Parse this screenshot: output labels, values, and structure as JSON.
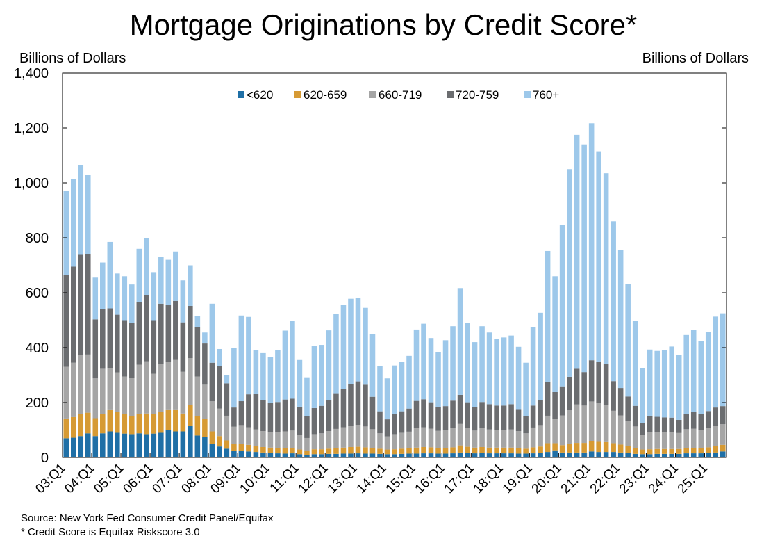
{
  "chart_data": {
    "type": "bar",
    "stacked": true,
    "title": "Mortgage Originations by Credit Score*",
    "ylabel_left": "Billions of Dollars",
    "ylabel_right": "Billions of Dollars",
    "ylim": [
      0,
      1400
    ],
    "yticks": [
      "0",
      "200",
      "400",
      "600",
      "800",
      "1,000",
      "1,200",
      "1,400"
    ],
    "ytick_values": [
      0,
      200,
      400,
      600,
      800,
      1000,
      1200,
      1400
    ],
    "grid": false,
    "legend_position": "top-center",
    "colors": {
      "<620": "#1f6fa6",
      "620-659": "#d69a34",
      "660-719": "#a5a5a5",
      "720-759": "#6b6d70",
      "760+": "#9dc8ea"
    },
    "xtick_labels": [
      "03:Q1",
      "04:Q1",
      "05:Q1",
      "06:Q1",
      "07:Q1",
      "08:Q1",
      "09:Q1",
      "10:Q1",
      "11:Q1",
      "12:Q1",
      "13:Q1",
      "14:Q1",
      "15:Q1",
      "16:Q1",
      "17:Q1",
      "18:Q1",
      "19:Q1",
      "20:Q1",
      "21:Q1",
      "22:Q1",
      "23:Q1",
      "24:Q1",
      "25:Q1"
    ],
    "categories": [
      "03:Q1",
      "03:Q2",
      "03:Q3",
      "03:Q4",
      "04:Q1",
      "04:Q2",
      "04:Q3",
      "04:Q4",
      "05:Q1",
      "05:Q2",
      "05:Q3",
      "05:Q4",
      "06:Q1",
      "06:Q2",
      "06:Q3",
      "06:Q4",
      "07:Q1",
      "07:Q2",
      "07:Q3",
      "07:Q4",
      "08:Q1",
      "08:Q2",
      "08:Q3",
      "08:Q4",
      "09:Q1",
      "09:Q2",
      "09:Q3",
      "09:Q4",
      "10:Q1",
      "10:Q2",
      "10:Q3",
      "10:Q4",
      "11:Q1",
      "11:Q2",
      "11:Q3",
      "11:Q4",
      "12:Q1",
      "12:Q2",
      "12:Q3",
      "12:Q4",
      "13:Q1",
      "13:Q2",
      "13:Q3",
      "13:Q4",
      "14:Q1",
      "14:Q2",
      "14:Q3",
      "14:Q4",
      "15:Q1",
      "15:Q2",
      "15:Q3",
      "15:Q4",
      "16:Q1",
      "16:Q2",
      "16:Q3",
      "16:Q4",
      "17:Q1",
      "17:Q2",
      "17:Q3",
      "17:Q4",
      "18:Q1",
      "18:Q2",
      "18:Q3",
      "18:Q4",
      "19:Q1",
      "19:Q2",
      "19:Q3",
      "19:Q4",
      "20:Q1",
      "20:Q2",
      "20:Q3",
      "20:Q4",
      "21:Q1",
      "21:Q2",
      "21:Q3",
      "21:Q4",
      "22:Q1",
      "22:Q2",
      "22:Q3",
      "22:Q4",
      "23:Q1",
      "23:Q2",
      "23:Q3",
      "23:Q4",
      "24:Q1",
      "24:Q2",
      "24:Q3",
      "24:Q4",
      "25:Q1",
      "25:Q2",
      "25:Q3"
    ],
    "totals": [
      970,
      1015,
      1065,
      1030,
      655,
      710,
      785,
      670,
      660,
      630,
      760,
      800,
      675,
      730,
      720,
      750,
      645,
      700,
      515,
      455,
      560,
      395,
      300,
      400,
      517,
      512,
      392,
      380,
      367,
      390,
      462,
      497,
      355,
      292,
      405,
      410,
      463,
      522,
      555,
      578,
      580,
      545,
      450,
      332,
      288,
      335,
      347,
      370,
      466,
      487,
      435,
      383,
      427,
      478,
      617,
      490,
      420,
      478,
      455,
      432,
      437,
      444,
      403,
      345,
      474,
      527,
      752,
      660,
      848,
      1050,
      1175,
      1140,
      1217,
      1115,
      1035,
      860,
      755,
      632,
      497,
      325,
      393,
      388,
      392,
      404,
      373,
      446,
      465,
      425,
      457,
      513,
      525
    ],
    "series": [
      {
        "name": "<620",
        "values": [
          70,
          72,
          78,
          88,
          78,
          88,
          95,
          90,
          87,
          85,
          88,
          85,
          87,
          90,
          100,
          95,
          95,
          115,
          80,
          75,
          50,
          40,
          32,
          25,
          25,
          22,
          20,
          18,
          17,
          15,
          14,
          15,
          12,
          10,
          12,
          12,
          13,
          13,
          14,
          14,
          15,
          14,
          14,
          13,
          12,
          12,
          13,
          14,
          14,
          15,
          15,
          14,
          14,
          15,
          18,
          16,
          15,
          16,
          15,
          15,
          15,
          15,
          14,
          14,
          15,
          16,
          20,
          26,
          18,
          18,
          18,
          18,
          22,
          20,
          20,
          20,
          18,
          16,
          13,
          12,
          12,
          13,
          13,
          13,
          13,
          15,
          15,
          15,
          16,
          18,
          22
        ]
      },
      {
        "name": "620-659",
        "values": [
          72,
          75,
          80,
          75,
          65,
          70,
          80,
          75,
          70,
          65,
          70,
          75,
          70,
          75,
          75,
          80,
          65,
          75,
          70,
          65,
          45,
          38,
          30,
          25,
          25,
          24,
          22,
          20,
          19,
          19,
          19,
          19,
          17,
          15,
          18,
          18,
          19,
          21,
          22,
          24,
          24,
          23,
          21,
          19,
          17,
          18,
          19,
          20,
          22,
          23,
          22,
          21,
          21,
          22,
          26,
          23,
          21,
          22,
          21,
          21,
          21,
          21,
          20,
          18,
          22,
          24,
          32,
          26,
          27,
          32,
          35,
          35,
          37,
          37,
          36,
          32,
          29,
          26,
          22,
          17,
          18,
          18,
          18,
          18,
          18,
          20,
          20,
          20,
          21,
          23,
          24
        ]
      },
      {
        "name": "660-719",
        "values": [
          188,
          198,
          215,
          212,
          145,
          165,
          150,
          145,
          138,
          140,
          180,
          190,
          148,
          175,
          172,
          180,
          152,
          172,
          145,
          125,
          110,
          100,
          90,
          62,
          68,
          64,
          60,
          58,
          56,
          58,
          62,
          64,
          52,
          46,
          55,
          58,
          64,
          70,
          74,
          78,
          80,
          76,
          68,
          56,
          48,
          55,
          58,
          60,
          70,
          72,
          68,
          62,
          64,
          70,
          78,
          68,
          62,
          68,
          66,
          65,
          65,
          66,
          62,
          56,
          72,
          78,
          100,
          88,
          108,
          124,
          140,
          136,
          145,
          140,
          136,
          118,
          106,
          92,
          78,
          52,
          62,
          62,
          62,
          62,
          58,
          68,
          70,
          66,
          70,
          75,
          75
        ]
      },
      {
        "name": "720-759",
        "values": [
          335,
          350,
          365,
          365,
          215,
          218,
          218,
          210,
          205,
          200,
          228,
          240,
          195,
          220,
          210,
          215,
          180,
          190,
          180,
          150,
          140,
          155,
          118,
          70,
          87,
          120,
          130,
          112,
          108,
          110,
          116,
          116,
          104,
          80,
          95,
          100,
          114,
          130,
          140,
          150,
          158,
          152,
          118,
          80,
          62,
          74,
          78,
          84,
          100,
          102,
          96,
          86,
          88,
          100,
          106,
          94,
          86,
          96,
          92,
          88,
          88,
          92,
          80,
          62,
          80,
          90,
          122,
          98,
          106,
          120,
          130,
          122,
          150,
          150,
          148,
          108,
          100,
          88,
          75,
          45,
          60,
          55,
          53,
          52,
          48,
          55,
          60,
          56,
          62,
          66,
          66
        ]
      },
      {
        "name": "760+",
        "values": [
          305,
          320,
          327,
          290,
          152,
          169,
          242,
          150,
          160,
          140,
          194,
          210,
          175,
          170,
          163,
          180,
          153,
          148,
          40,
          40,
          215,
          62,
          30,
          218,
          312,
          282,
          160,
          172,
          167,
          188,
          251,
          283,
          170,
          141,
          225,
          222,
          253,
          288,
          305,
          312,
          303,
          280,
          229,
          164,
          149,
          176,
          179,
          192,
          260,
          275,
          234,
          200,
          240,
          271,
          389,
          289,
          236,
          276,
          261,
          243,
          248,
          250,
          227,
          195,
          285,
          319,
          478,
          422,
          589,
          756,
          852,
          829,
          863,
          768,
          695,
          582,
          502,
          410,
          309,
          199,
          241,
          240,
          246,
          259,
          236,
          288,
          300,
          268,
          288,
          331,
          338
        ]
      }
    ],
    "source_note": "Source: New York Fed Consumer Credit Panel/Equifax",
    "footnote": "* Credit Score is Equifax Riskscore 3.0"
  }
}
